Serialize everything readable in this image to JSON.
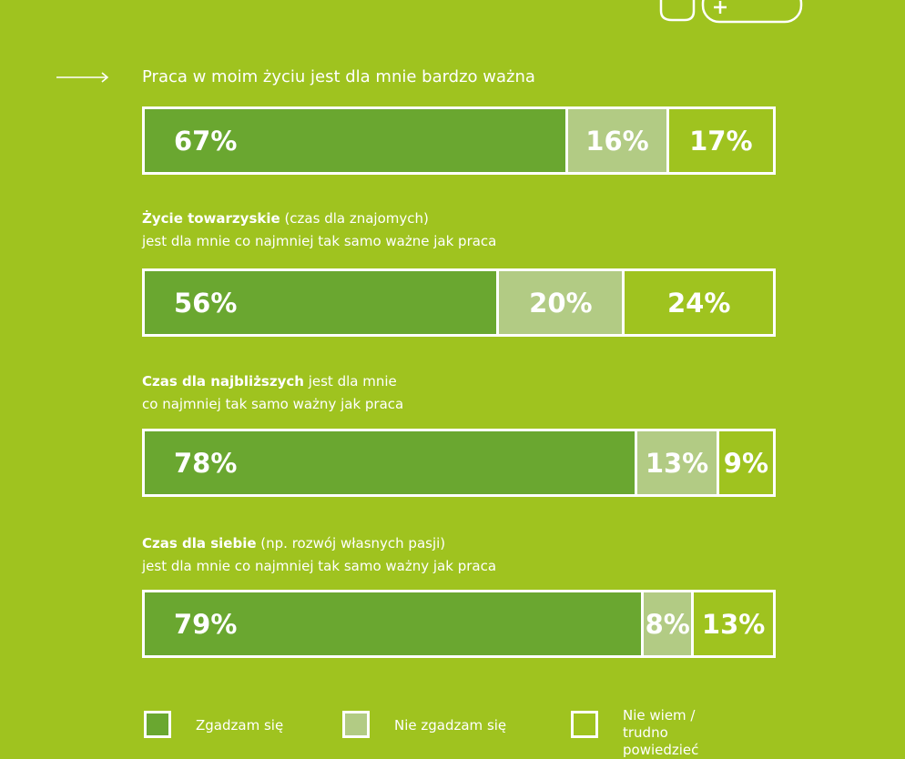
{
  "chart_data": {
    "type": "bar",
    "orientation": "horizontal",
    "stacked": true,
    "edge_color": "#ffffff",
    "categories": [
      [
        [
          {
            "text": "Praca w moim życiu jest dla mnie bardzo ważna",
            "bold": false
          }
        ]
      ],
      [
        [
          {
            "text": "Życie towarzyskie",
            "bold": true
          },
          {
            "text": " (czas dla znajomych)",
            "bold": false
          }
        ],
        [
          {
            "text": "jest dla mnie co najmniej tak samo ważne jak praca",
            "bold": false
          }
        ]
      ],
      [
        [
          {
            "text": "Czas dla najbliższych",
            "bold": true
          },
          {
            "text": " jest dla mnie",
            "bold": false
          }
        ],
        [
          {
            "text": "co najmniej tak samo ważny jak praca",
            "bold": false
          }
        ]
      ],
      [
        [
          {
            "text": "Czas dla siebie",
            "bold": true
          },
          {
            "text": " (np. rozwój własnych pasji)",
            "bold": false
          }
        ],
        [
          {
            "text": "jest dla mnie co najmniej tak samo ważny jak praca",
            "bold": false
          }
        ]
      ]
    ],
    "series": [
      {
        "name": "Zgadzam się",
        "color": "#6aa730",
        "values": [
          67,
          56,
          78,
          79
        ],
        "value_labels": [
          "67%",
          "56%",
          "78%",
          "79%"
        ]
      },
      {
        "name": "Nie zgadzam się",
        "color": "#b2cb84",
        "values": [
          16,
          20,
          13,
          8
        ],
        "value_labels": [
          "16%",
          "20%",
          "13%",
          "8%"
        ]
      },
      {
        "name": "Nie wiem / trudno powiedzieć",
        "color": "transparent",
        "values": [
          17,
          24,
          9,
          13
        ],
        "value_labels": [
          "17%",
          "24%",
          "9%",
          "13%"
        ]
      }
    ]
  }
}
